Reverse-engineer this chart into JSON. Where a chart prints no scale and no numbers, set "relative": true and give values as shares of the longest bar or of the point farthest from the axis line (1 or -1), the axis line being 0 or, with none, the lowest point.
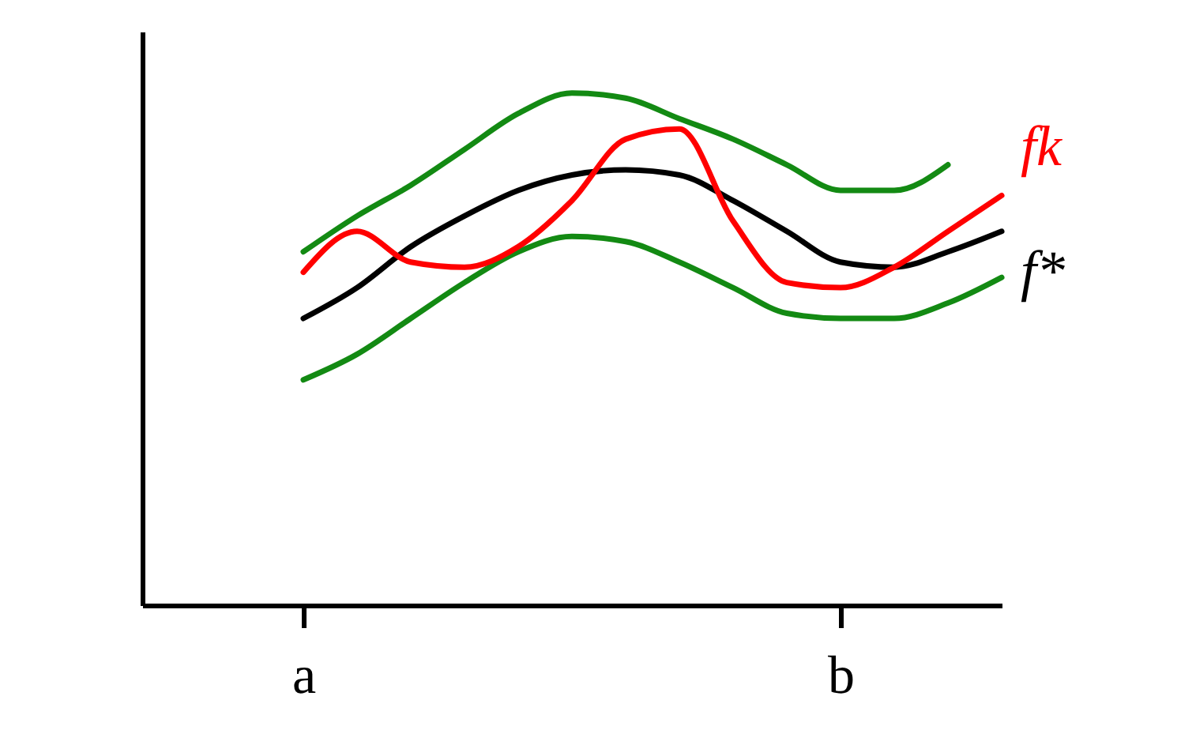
{
  "chart_data": {
    "type": "line",
    "relative": true,
    "categories": [
      null,
      null,
      null,
      "a",
      null,
      null,
      null,
      null,
      null,
      null,
      null,
      null,
      null,
      "b",
      null,
      null,
      null
    ],
    "series": [
      {
        "color": "#138a13",
        "values": [
          null,
          null,
          null,
          0.69,
          0.76,
          0.82,
          0.89,
          0.96,
          1.0,
          0.99,
          0.95,
          0.91,
          0.86,
          0.81,
          0.81,
          0.86,
          null
        ]
      },
      {
        "color": "#138a13",
        "values": [
          null,
          null,
          null,
          0.44,
          0.49,
          0.56,
          0.63,
          0.69,
          0.72,
          0.71,
          0.67,
          0.62,
          0.57,
          0.56,
          0.56,
          0.59,
          0.64
        ]
      },
      {
        "name": "f*",
        "color": "#000000",
        "values": [
          null,
          null,
          null,
          0.56,
          0.62,
          0.7,
          0.76,
          0.81,
          0.84,
          0.85,
          0.84,
          0.79,
          0.73,
          0.67,
          0.66,
          0.69,
          0.73
        ]
      },
      {
        "name": "fk",
        "color": "#ff0000",
        "values": [
          null,
          null,
          null,
          0.65,
          0.73,
          0.67,
          0.66,
          0.7,
          0.79,
          0.91,
          0.93,
          0.75,
          0.63,
          0.62,
          0.66,
          0.73,
          0.8
        ]
      }
    ]
  }
}
